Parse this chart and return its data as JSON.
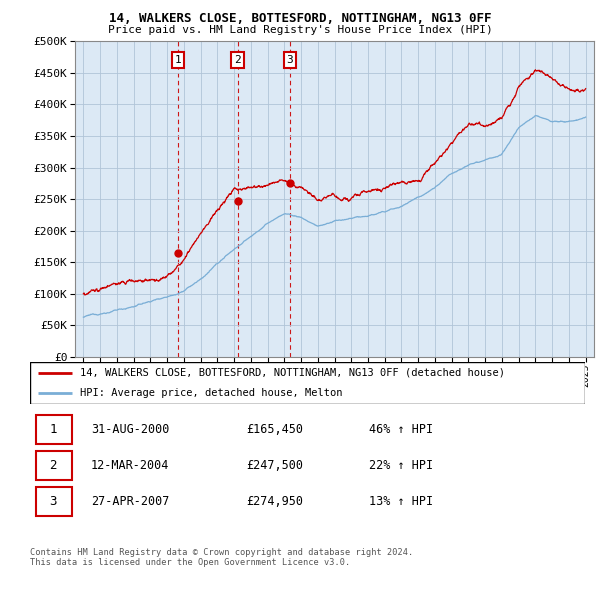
{
  "title_line1": "14, WALKERS CLOSE, BOTTESFORD, NOTTINGHAM, NG13 0FF",
  "title_line2": "Price paid vs. HM Land Registry's House Price Index (HPI)",
  "background_color": "#dce9f5",
  "grid_color": "#b0c4d8",
  "sale_color": "#cc0000",
  "hpi_color": "#7aaed6",
  "sale_label": "14, WALKERS CLOSE, BOTTESFORD, NOTTINGHAM, NG13 0FF (detached house)",
  "hpi_label": "HPI: Average price, detached house, Melton",
  "transactions": [
    {
      "label": "1",
      "date_num": 2000.67,
      "price": 165450
    },
    {
      "label": "2",
      "date_num": 2004.21,
      "price": 247500
    },
    {
      "label": "3",
      "date_num": 2007.33,
      "price": 274950
    }
  ],
  "table_rows": [
    {
      "num": "1",
      "date": "31-AUG-2000",
      "price": "£165,450",
      "pct": "46% ↑ HPI"
    },
    {
      "num": "2",
      "date": "12-MAR-2004",
      "price": "£247,500",
      "pct": "22% ↑ HPI"
    },
    {
      "num": "3",
      "date": "27-APR-2007",
      "price": "£274,950",
      "pct": "13% ↑ HPI"
    }
  ],
  "footer": "Contains HM Land Registry data © Crown copyright and database right 2024.\nThis data is licensed under the Open Government Licence v3.0.",
  "ylim": [
    0,
    500000
  ],
  "yticks": [
    0,
    50000,
    100000,
    150000,
    200000,
    250000,
    300000,
    350000,
    400000,
    450000,
    500000
  ],
  "xlim_start": 1994.5,
  "xlim_end": 2025.5,
  "hpi_anchors_x": [
    1995,
    1996,
    1997,
    1998,
    1999,
    2000,
    2001,
    2002,
    2003,
    2004,
    2005,
    2006,
    2007,
    2008,
    2009,
    2010,
    2011,
    2012,
    2013,
    2014,
    2015,
    2016,
    2017,
    2018,
    2019,
    2020,
    2021,
    2022,
    2023,
    2024,
    2025
  ],
  "hpi_anchors_y": [
    63000,
    68000,
    74000,
    80000,
    88000,
    97000,
    108000,
    125000,
    148000,
    172000,
    192000,
    212000,
    228000,
    222000,
    208000,
    215000,
    218000,
    222000,
    228000,
    238000,
    252000,
    270000,
    290000,
    308000,
    318000,
    322000,
    365000,
    385000,
    375000,
    375000,
    380000
  ],
  "red_anchors_x": [
    1995,
    1996,
    1997,
    1998,
    1999,
    2000,
    2001,
    2002,
    2003,
    2004,
    2005,
    2006,
    2007,
    2008,
    2009,
    2010,
    2011,
    2012,
    2013,
    2014,
    2015,
    2016,
    2017,
    2018,
    2019,
    2020,
    2021,
    2022,
    2023,
    2024,
    2025
  ],
  "red_anchors_y": [
    100000,
    105000,
    110000,
    115000,
    118000,
    122000,
    148000,
    185000,
    220000,
    255000,
    265000,
    275000,
    285000,
    268000,
    248000,
    258000,
    258000,
    262000,
    268000,
    278000,
    292000,
    315000,
    345000,
    368000,
    370000,
    378000,
    428000,
    460000,
    440000,
    415000,
    425000
  ]
}
